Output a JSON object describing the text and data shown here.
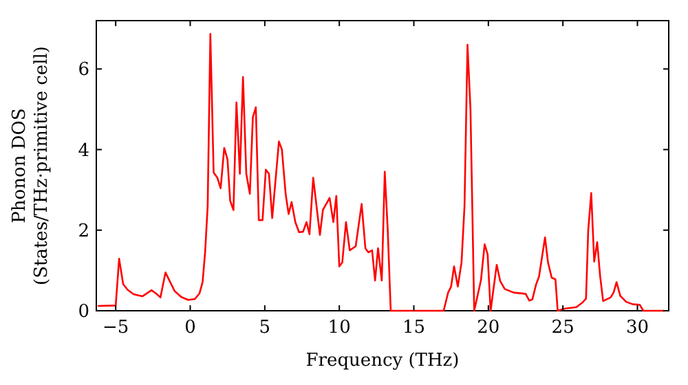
{
  "chart_data": {
    "type": "line",
    "xlabel": "Frequency (THz)",
    "ylabel": "Phonon DOS\n(States/THz·primitive cell)",
    "xlim": [
      -6.3,
      32.1
    ],
    "ylim": [
      0,
      7.2
    ],
    "xticks": [
      -5,
      0,
      5,
      10,
      15,
      20,
      25,
      30
    ],
    "yticks": [
      0,
      2,
      4,
      6
    ],
    "grid": false,
    "marker": "none",
    "line_style": "solid",
    "series": [
      {
        "color": "#ff0000",
        "x": [
          -6.2,
          -5,
          -4.77,
          -4.5,
          -4.2,
          -3.8,
          -3.2,
          -2.6,
          -2.3,
          -2.0,
          -1.66,
          -1.05,
          -0.6,
          -0.14,
          0.31,
          0.62,
          0.83,
          1.0,
          1.17,
          1.35,
          1.57,
          1.82,
          2.04,
          2.28,
          2.5,
          2.68,
          2.9,
          3.1,
          3.33,
          3.54,
          3.76,
          4.0,
          4.2,
          4.4,
          4.6,
          4.85,
          5.07,
          5.28,
          5.5,
          5.95,
          6.15,
          6.4,
          6.6,
          6.8,
          7.05,
          7.3,
          7.57,
          7.8,
          8.0,
          8.25,
          8.7,
          8.9,
          9.35,
          9.6,
          9.8,
          10.0,
          10.2,
          10.45,
          10.7,
          11.1,
          11.5,
          11.75,
          11.95,
          12.2,
          12.4,
          12.6,
          12.85,
          13.05,
          13.25,
          13.45,
          17.0,
          17.3,
          17.5,
          17.7,
          17.95,
          18.2,
          18.4,
          18.6,
          18.8,
          19.05,
          19.5,
          19.75,
          19.95,
          20.15,
          20.56,
          20.8,
          21.1,
          21.7,
          22.5,
          22.75,
          22.95,
          23.2,
          23.4,
          23.8,
          24.0,
          24.25,
          24.5,
          24.65,
          25.1,
          25.9,
          26.3,
          26.55,
          26.7,
          26.9,
          27.1,
          27.3,
          27.5,
          27.7,
          28.2,
          28.4,
          28.6,
          28.85,
          29.25,
          29.7,
          30.15,
          30.4,
          31.8
        ],
        "values": [
          0.12,
          0.13,
          1.29,
          0.66,
          0.52,
          0.41,
          0.36,
          0.51,
          0.43,
          0.33,
          0.95,
          0.49,
          0.34,
          0.27,
          0.29,
          0.43,
          0.71,
          1.46,
          2.6,
          6.87,
          3.43,
          3.3,
          3.04,
          4.04,
          3.75,
          2.73,
          2.5,
          5.17,
          3.4,
          5.8,
          3.4,
          2.9,
          4.8,
          5.05,
          2.25,
          2.25,
          3.5,
          3.4,
          2.3,
          4.2,
          4.0,
          2.9,
          2.4,
          2.7,
          2.2,
          1.95,
          1.96,
          2.2,
          1.9,
          3.3,
          1.88,
          2.5,
          2.8,
          2.2,
          2.85,
          1.1,
          1.2,
          2.2,
          1.5,
          1.6,
          2.65,
          1.55,
          1.45,
          1.5,
          0.75,
          1.55,
          0.75,
          3.45,
          2.0,
          0,
          0,
          0.45,
          0.6,
          1.1,
          0.6,
          1.2,
          2.6,
          6.6,
          5.0,
          0,
          0.75,
          1.65,
          1.4,
          0,
          1.14,
          0.73,
          0.54,
          0.45,
          0.42,
          0.25,
          0.28,
          0.65,
          0.85,
          1.82,
          1.2,
          0.82,
          0.78,
          0,
          0.05,
          0.09,
          0.2,
          0.3,
          2.0,
          2.92,
          1.22,
          1.7,
          0.85,
          0.24,
          0.33,
          0.45,
          0.71,
          0.37,
          0.22,
          0.16,
          0.15,
          0,
          0
        ]
      }
    ]
  }
}
